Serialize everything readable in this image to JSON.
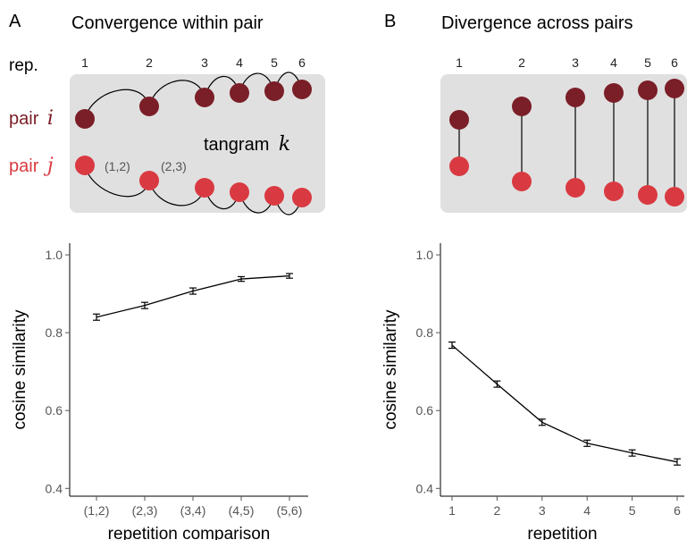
{
  "colors": {
    "pair_i": "#7a1e27",
    "pair_j": "#d93a41",
    "box": "#e0e0e0",
    "line": "#000000"
  },
  "panelA": {
    "letter": "A",
    "title": "Convergence within pair",
    "rep_label": "rep.",
    "rep_numbers": [
      "1",
      "2",
      "3",
      "4",
      "5",
      "6"
    ],
    "pair_i_word": "pair",
    "pair_i_var": "i",
    "pair_j_word": "pair",
    "pair_j_var": "j",
    "tangram_word": "tangram",
    "tangram_var": "k",
    "comparison_labels": [
      "(1,2)",
      "(2,3)"
    ]
  },
  "panelB": {
    "letter": "B",
    "title": "Divergence across pairs",
    "rep_numbers": [
      "1",
      "2",
      "3",
      "4",
      "5",
      "6"
    ]
  },
  "chart_data": [
    {
      "type": "line",
      "panel": "A",
      "categories": [
        "(1,2)",
        "(2,3)",
        "(3,4)",
        "(4,5)",
        "(5,6)"
      ],
      "values": [
        0.84,
        0.87,
        0.907,
        0.938,
        0.946
      ],
      "errors": [
        0.008,
        0.008,
        0.008,
        0.006,
        0.006
      ],
      "xlabel": "repetition comparison",
      "ylabel": "cosine similarity",
      "ylim": [
        0.38,
        1.03
      ],
      "yticks": [
        0.4,
        0.6,
        0.8,
        1.0
      ],
      "ytick_labels": [
        "0.4",
        "0.6",
        "0.8",
        "1.0"
      ],
      "grid": false
    },
    {
      "type": "line",
      "panel": "B",
      "x": [
        1,
        2,
        3,
        4,
        5,
        6
      ],
      "xtick_labels": [
        "1",
        "2",
        "3",
        "4",
        "5",
        "6"
      ],
      "values": [
        0.768,
        0.668,
        0.57,
        0.516,
        0.491,
        0.468
      ],
      "errors": [
        0.008,
        0.008,
        0.008,
        0.008,
        0.008,
        0.008
      ],
      "xlabel": "repetition",
      "ylabel": "cosine similarity",
      "ylim": [
        0.38,
        1.03
      ],
      "yticks": [
        0.4,
        0.6,
        0.8,
        1.0
      ],
      "ytick_labels": [
        "0.4",
        "0.6",
        "0.8",
        "1.0"
      ],
      "grid": false
    }
  ]
}
